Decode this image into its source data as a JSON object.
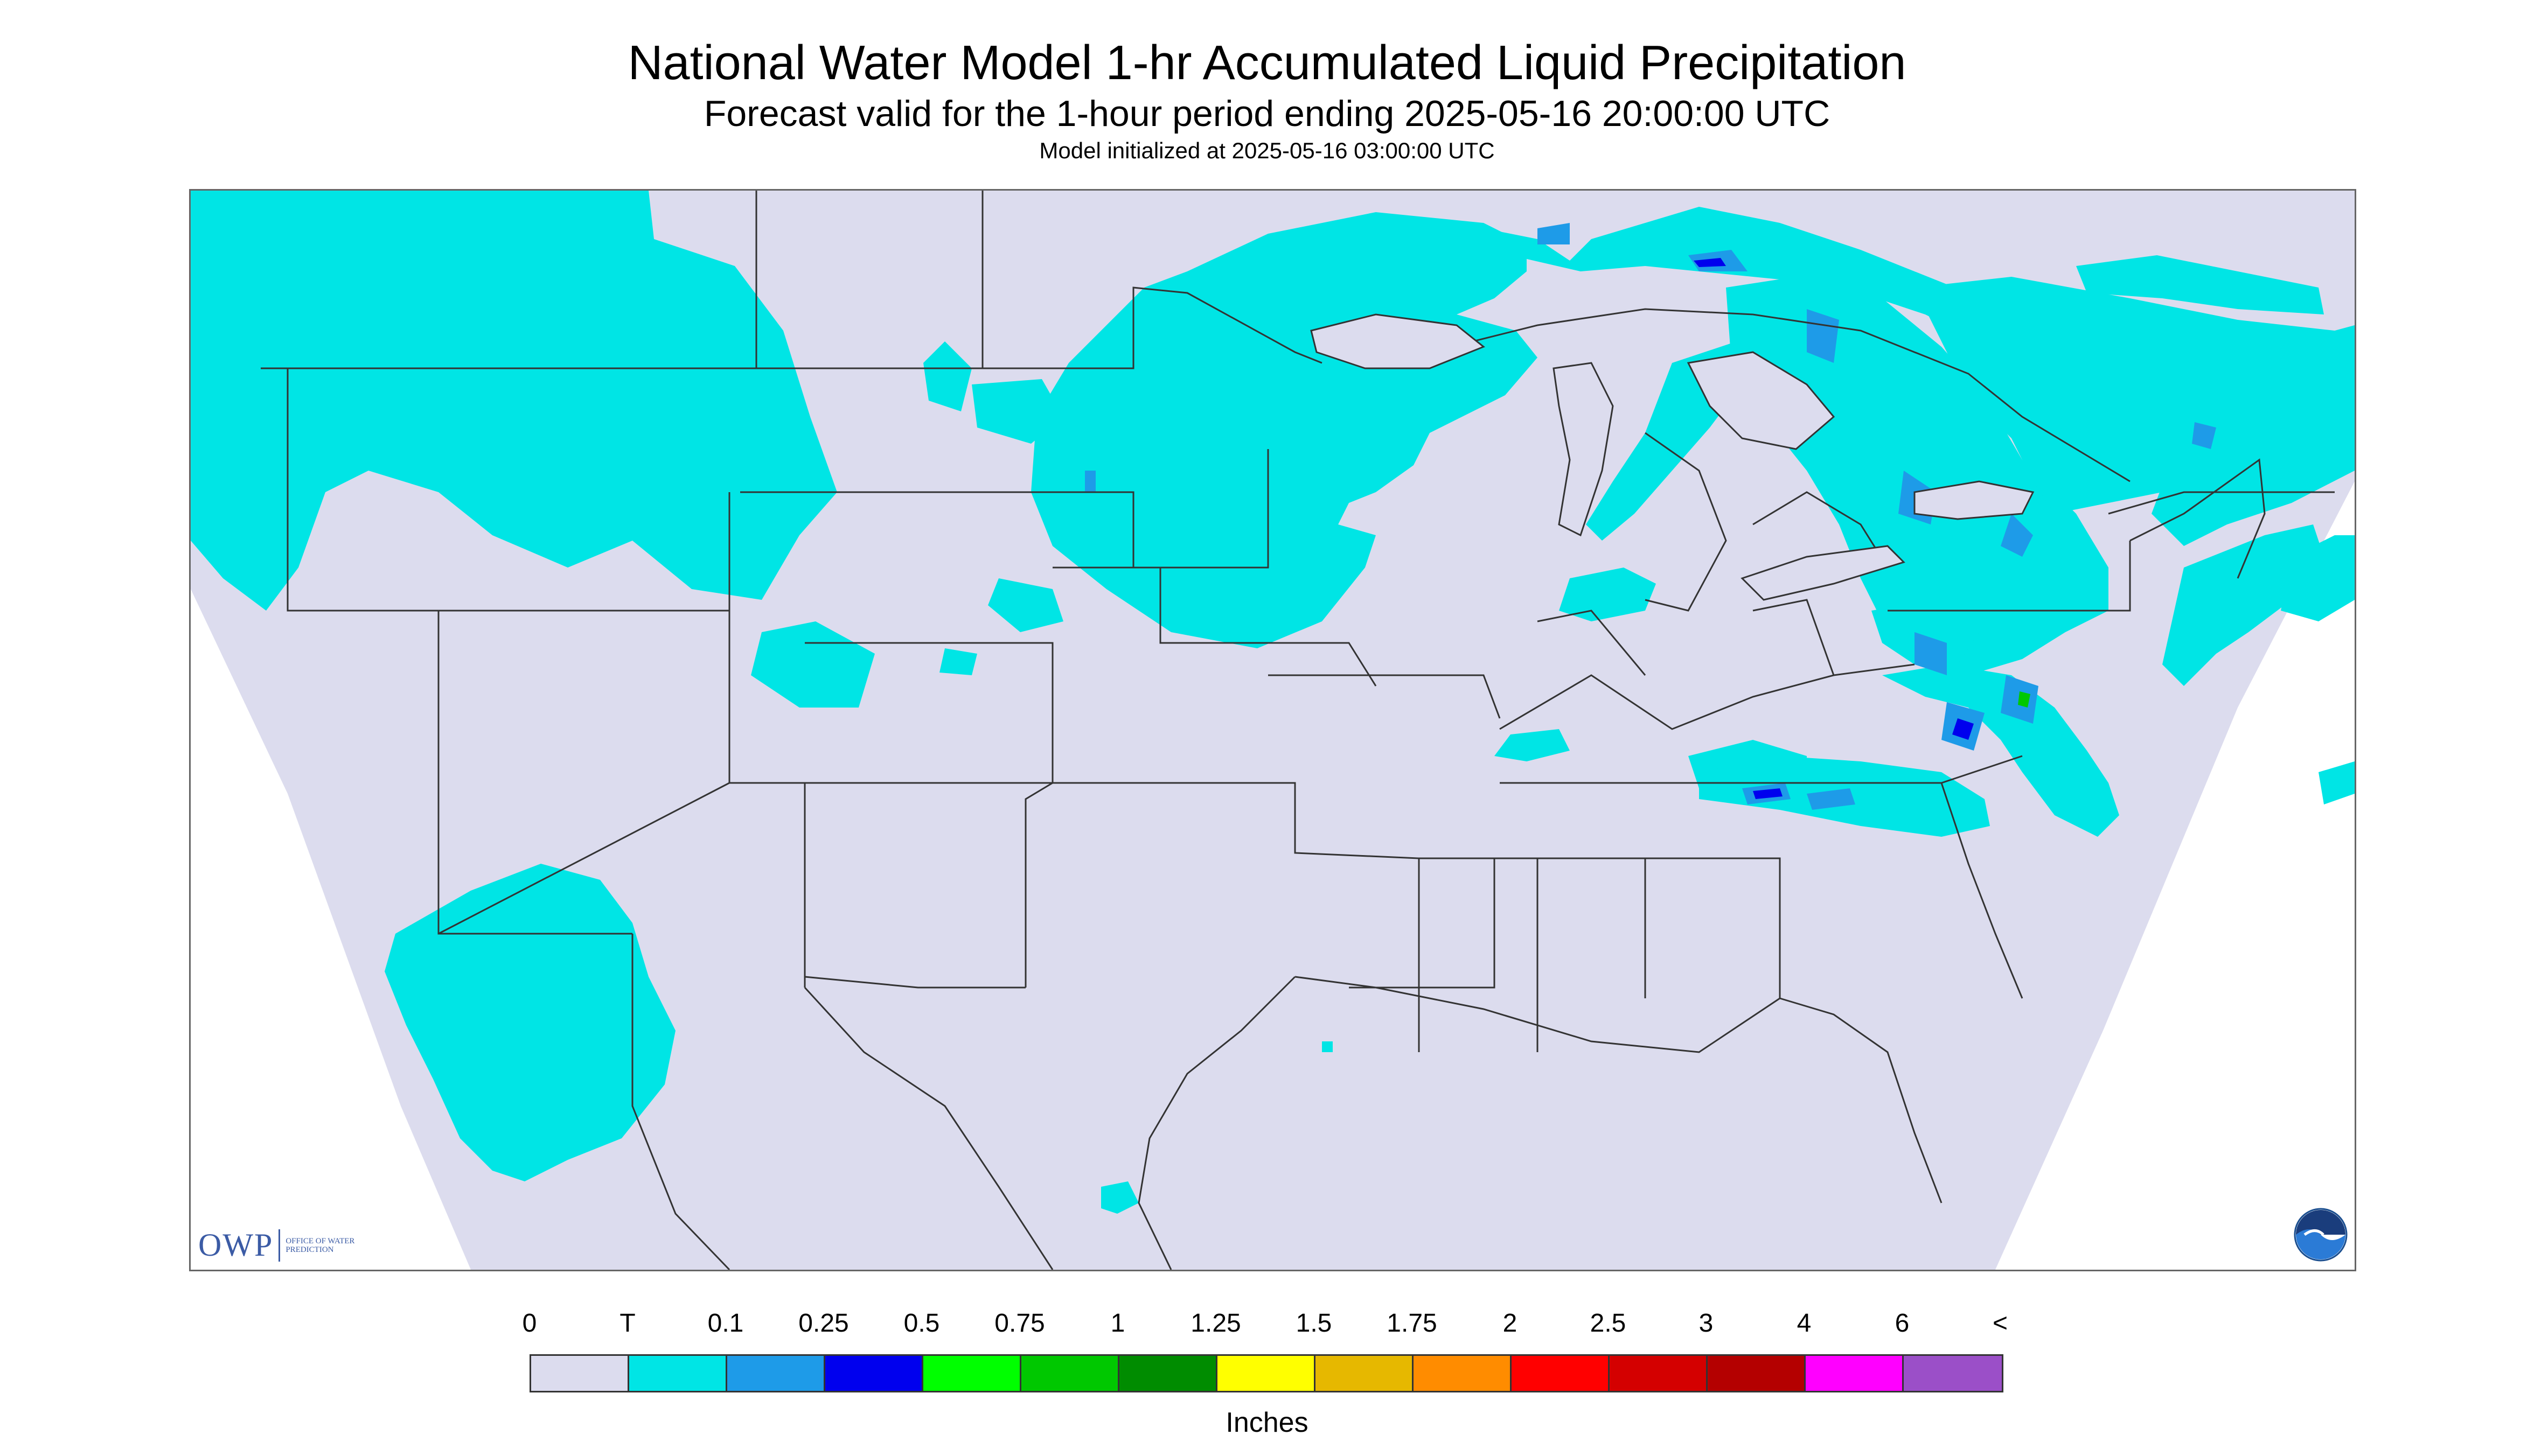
{
  "title": "National Water Model 1-hr Accumulated Liquid Precipitation",
  "subtitle": "Forecast valid for the 1-hour period ending 2025-05-16 20:00:00 UTC",
  "init_line": "Model initialized at 2025-05-16 03:00:00 UTC",
  "logo": {
    "mark": "OWP",
    "text": "OFFICE OF WATER PREDICTION",
    "agency_icon": "noaa-logo-icon"
  },
  "colors": {
    "background_no_data": "#ffffff",
    "zero": "#dcdcee",
    "border_lines": "#333333",
    "trace": "#00e5e5"
  },
  "legend": {
    "units": "Inches",
    "labels": [
      "0",
      "T",
      "0.1",
      "0.25",
      "0.5",
      "0.75",
      "1",
      "1.25",
      "1.5",
      "1.75",
      "2",
      "2.5",
      "3",
      "4",
      "6",
      "<"
    ],
    "colors": [
      "#dcdcee",
      "#00e5e5",
      "#1e9be8",
      "#0000ee",
      "#00ff00",
      "#00c800",
      "#008c00",
      "#ffff00",
      "#e6b800",
      "#ff8c00",
      "#ff0000",
      "#d40000",
      "#b40000",
      "#ff00ff",
      "#9b4fc8"
    ]
  }
}
